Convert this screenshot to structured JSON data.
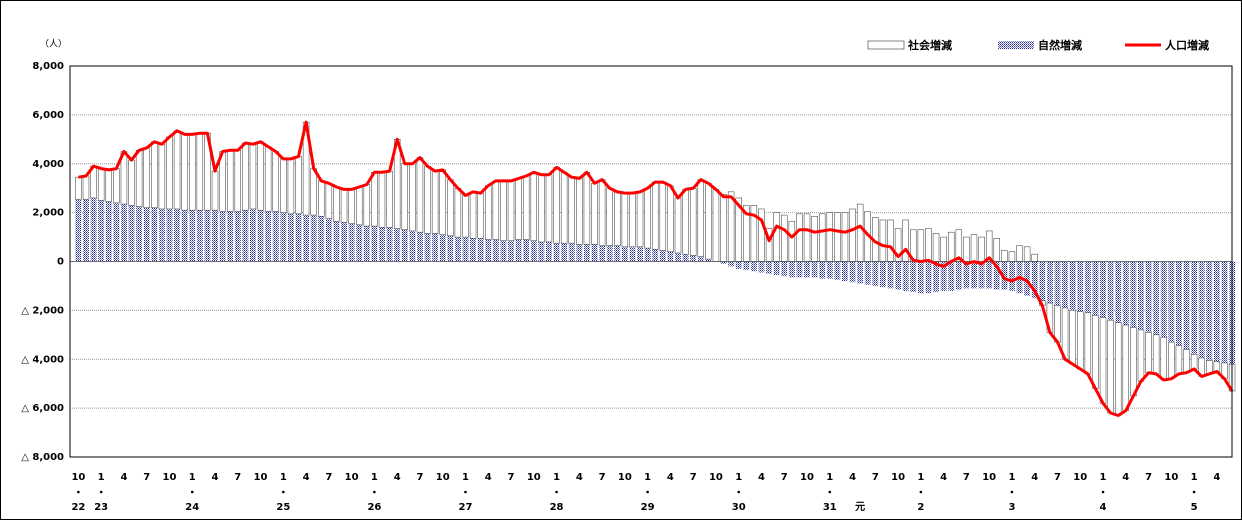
{
  "chart_data": {
    "type": "bar_line",
    "y_unit": "（人）",
    "ylim": [
      -8000,
      8000
    ],
    "yticks": [
      {
        "value": 8000,
        "label": "8,000"
      },
      {
        "value": 6000,
        "label": "6,000"
      },
      {
        "value": 4000,
        "label": "4,000"
      },
      {
        "value": 2000,
        "label": "2,000"
      },
      0,
      {
        "value": -2000,
        "label": "△ 2,000"
      },
      {
        "value": -4000,
        "label": "△ 4,000"
      },
      {
        "value": -6000,
        "label": "△ 6,000"
      },
      {
        "value": -8000,
        "label": "△ 8,000"
      }
    ],
    "grid": true,
    "legend": "top-right",
    "categories": [
      "10",
      null,
      null,
      "1",
      null,
      null,
      "4",
      null,
      null,
      "7",
      null,
      null,
      "10",
      null,
      null,
      "1",
      null,
      null,
      "4",
      null,
      null,
      "7",
      null,
      null,
      "10",
      null,
      null,
      "1",
      null,
      null,
      "4",
      null,
      null,
      "7",
      null,
      null,
      "10",
      null,
      null,
      "1",
      null,
      null,
      "4",
      null,
      null,
      "7",
      null,
      null,
      "10",
      null,
      null,
      "1",
      null,
      null,
      "4",
      null,
      null,
      "7",
      null,
      null,
      "10",
      null,
      null,
      "1",
      null,
      null,
      "4",
      null,
      null,
      "7",
      null,
      null,
      "10",
      null,
      null,
      "1",
      null,
      null,
      "4",
      null,
      null,
      "7",
      null,
      null,
      "10",
      null,
      null,
      "1",
      null,
      null,
      "4",
      null,
      null,
      "7",
      null,
      null,
      "10",
      null,
      null,
      "1",
      null,
      null,
      "4",
      null,
      null,
      "7",
      null,
      null,
      "10",
      null,
      null,
      "1",
      null,
      null,
      "4",
      null,
      null,
      "7",
      null,
      null,
      "10",
      null,
      null,
      "1",
      null,
      null,
      "4",
      null,
      null,
      "7",
      null,
      null,
      "10",
      null,
      null,
      "1",
      null,
      null,
      "4",
      null,
      null,
      "7",
      null,
      null,
      "10",
      null,
      null,
      "1",
      null,
      null,
      "4",
      null,
      null
    ],
    "year_labels": [
      "22",
      null,
      null,
      "23",
      null,
      null,
      null,
      null,
      null,
      null,
      null,
      null,
      null,
      null,
      null,
      "24",
      null,
      null,
      null,
      null,
      null,
      null,
      null,
      null,
      null,
      null,
      null,
      "25",
      null,
      null,
      null,
      null,
      null,
      null,
      null,
      null,
      null,
      null,
      null,
      "26",
      null,
      null,
      null,
      null,
      null,
      null,
      null,
      null,
      null,
      null,
      null,
      "27",
      null,
      null,
      null,
      null,
      null,
      null,
      null,
      null,
      null,
      null,
      null,
      "28",
      null,
      null,
      null,
      null,
      null,
      null,
      null,
      null,
      null,
      null,
      null,
      "29",
      null,
      null,
      null,
      null,
      null,
      null,
      null,
      null,
      null,
      null,
      null,
      "30",
      null,
      null,
      null,
      null,
      null,
      null,
      null,
      null,
      null,
      null,
      null,
      "31",
      null,
      null,
      null,
      "元",
      null,
      null,
      null,
      null,
      null,
      null,
      null,
      "2",
      null,
      null,
      null,
      null,
      null,
      null,
      null,
      null,
      null,
      null,
      null,
      "3",
      null,
      null,
      null,
      null,
      null,
      null,
      null,
      null,
      null,
      null,
      null,
      "4",
      null,
      null,
      null,
      null,
      null,
      null,
      null,
      null,
      null,
      null,
      null,
      "5",
      null,
      null,
      null,
      null,
      null
    ],
    "series": [
      {
        "name": "社会増減",
        "kind": "bar",
        "color": "#ffffff",
        "values": [
          900,
          950,
          1300,
          1300,
          1300,
          1400,
          2150,
          1850,
          2300,
          2450,
          2700,
          2650,
          2950,
          3200,
          3100,
          3100,
          3150,
          3150,
          1600,
          2450,
          2500,
          2500,
          2750,
          2650,
          2800,
          2650,
          2450,
          2200,
          2250,
          2350,
          3800,
          1900,
          1450,
          1450,
          1400,
          1350,
          1400,
          1550,
          1700,
          2200,
          2250,
          2300,
          3650,
          2700,
          2750,
          3050,
          2750,
          2550,
          2650,
          2300,
          2000,
          1700,
          1900,
          1850,
          2200,
          2400,
          2450,
          2450,
          2500,
          2600,
          2800,
          2750,
          2750,
          3100,
          2900,
          2700,
          2700,
          2950,
          2500,
          2700,
          2350,
          2200,
          2200,
          2200,
          2250,
          2450,
          2750,
          2800,
          2700,
          2250,
          2650,
          2750,
          3150,
          3100,
          2950,
          2750,
          2850,
          2600,
          2300,
          2300,
          2150,
          1350,
          2000,
          1900,
          1650,
          1950,
          1950,
          1850,
          1950,
          2000,
          2000,
          2000,
          2150,
          2350,
          2050,
          1800,
          1700,
          1700,
          1350,
          1700,
          1300,
          1300,
          1350,
          1150,
          1000,
          1200,
          1300,
          1000,
          1100,
          1000,
          1250,
          950,
          450,
          400,
          650,
          600,
          300,
          -200,
          -1200,
          -1500,
          -2100,
          -2200,
          -2350,
          -2500,
          -3000,
          -3500,
          -3800,
          -3800,
          -3500,
          -2800,
          -2100,
          -1650,
          -1600,
          -1750,
          -1500,
          -1150,
          -950,
          -600,
          -750,
          -550,
          -400,
          -650,
          -1100
        ]
      },
      {
        "name": "自然増減",
        "kind": "bar",
        "color": "#1f2a8c",
        "values": [
          2550,
          2550,
          2600,
          2500,
          2450,
          2400,
          2350,
          2300,
          2250,
          2200,
          2200,
          2150,
          2150,
          2150,
          2100,
          2100,
          2100,
          2100,
          2100,
          2050,
          2050,
          2050,
          2100,
          2150,
          2100,
          2050,
          2050,
          2000,
          1950,
          1950,
          1900,
          1900,
          1850,
          1750,
          1650,
          1600,
          1550,
          1500,
          1450,
          1450,
          1400,
          1400,
          1350,
          1300,
          1250,
          1200,
          1150,
          1150,
          1100,
          1050,
          1000,
          1000,
          950,
          950,
          900,
          900,
          850,
          850,
          900,
          900,
          850,
          800,
          800,
          750,
          750,
          750,
          700,
          700,
          700,
          650,
          650,
          650,
          600,
          600,
          600,
          550,
          500,
          450,
          400,
          350,
          300,
          250,
          200,
          100,
          0,
          -100,
          -200,
          -300,
          -350,
          -400,
          -450,
          -500,
          -550,
          -600,
          -650,
          -650,
          -650,
          -650,
          -700,
          -700,
          -750,
          -800,
          -850,
          -900,
          -950,
          -1000,
          -1050,
          -1100,
          -1150,
          -1200,
          -1250,
          -1300,
          -1300,
          -1250,
          -1200,
          -1200,
          -1150,
          -1100,
          -1100,
          -1100,
          -1100,
          -1150,
          -1150,
          -1200,
          -1300,
          -1400,
          -1500,
          -1600,
          -1700,
          -1800,
          -1900,
          -2000,
          -2050,
          -2100,
          -2200,
          -2300,
          -2400,
          -2500,
          -2600,
          -2700,
          -2800,
          -2900,
          -3000,
          -3100,
          -3300,
          -3450,
          -3600,
          -3800,
          -3950,
          -4050,
          -4100,
          -4150,
          -4200
        ]
      },
      {
        "name": "人口増減",
        "kind": "line",
        "color": "#ff0000",
        "values": [
          3450,
          3500,
          3900,
          3800,
          3750,
          3800,
          4500,
          4150,
          4550,
          4650,
          4900,
          4800,
          5100,
          5350,
          5200,
          5200,
          5250,
          5250,
          3700,
          4500,
          4550,
          4550,
          4850,
          4800,
          4900,
          4700,
          4500,
          4200,
          4200,
          4300,
          5700,
          3800,
          3300,
          3200,
          3050,
          2950,
          2950,
          3050,
          3150,
          3650,
          3650,
          3700,
          5000,
          4000,
          4000,
          4250,
          3900,
          3700,
          3750,
          3350,
          3000,
          2700,
          2850,
          2800,
          3100,
          3300,
          3300,
          3300,
          3400,
          3500,
          3650,
          3550,
          3550,
          3850,
          3650,
          3450,
          3400,
          3650,
          3200,
          3350,
          3000,
          2850,
          2800,
          2800,
          2850,
          3000,
          3250,
          3250,
          3100,
          2600,
          2950,
          3000,
          3350,
          3200,
          2950,
          2650,
          2650,
          2300,
          1950,
          1900,
          1700,
          850,
          1450,
          1300,
          1000,
          1300,
          1300,
          1200,
          1250,
          1300,
          1250,
          1200,
          1300,
          1450,
          1100,
          800,
          650,
          600,
          200,
          500,
          50,
          0,
          50,
          -100,
          -200,
          0,
          150,
          -100,
          0,
          -100,
          150,
          -200,
          -700,
          -800,
          -650,
          -800,
          -1200,
          -1800,
          -2900,
          -3300,
          -4000,
          -4200,
          -4400,
          -4600,
          -5200,
          -5800,
          -6200,
          -6300,
          -6100,
          -5500,
          -4900,
          -4550,
          -4600,
          -4850,
          -4800,
          -4600,
          -4550,
          -4400,
          -4700,
          -4600,
          -4500,
          -4800,
          -5300
        ]
      }
    ]
  }
}
